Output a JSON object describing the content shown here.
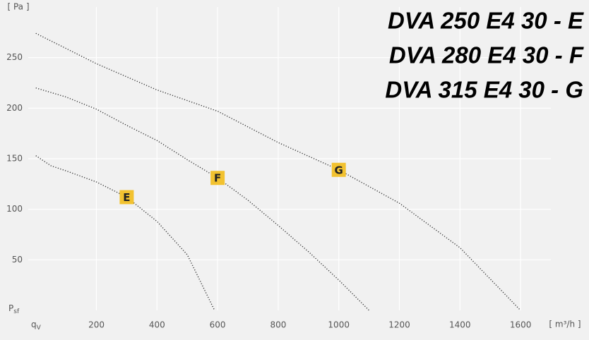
{
  "chart_data": {
    "type": "line",
    "title_lines": [
      "DVA 250 E4 30 - E",
      "DVA 280 E4 30 - F",
      "DVA 315 E4 30 - G"
    ],
    "y_axis_label": "[ Pa ]",
    "x_axis_label": "[ m³/h ]",
    "x_symbol": [
      "q",
      "V"
    ],
    "y_symbol": [
      "P",
      "sf"
    ],
    "xlim": [
      -25,
      1700
    ],
    "ylim": [
      0,
      300
    ],
    "xticks": [
      200,
      400,
      600,
      800,
      1000,
      1200,
      1400,
      1600
    ],
    "yticks": [
      50,
      100,
      150,
      200,
      250
    ],
    "grid": true,
    "series": [
      {
        "name": "E",
        "color": "#333333",
        "x": [
          0,
          50,
          100,
          200,
          300,
          400,
          500,
          590
        ],
        "values": [
          153,
          143,
          138,
          127,
          112,
          88,
          55,
          0
        ]
      },
      {
        "name": "F",
        "color": "#333333",
        "x": [
          0,
          100,
          200,
          300,
          400,
          500,
          600,
          700,
          800,
          900,
          1000,
          1100
        ],
        "values": [
          220,
          211,
          199,
          183,
          168,
          149,
          131,
          109,
          84,
          58,
          30,
          0
        ]
      },
      {
        "name": "G",
        "color": "#333333",
        "x": [
          0,
          200,
          400,
          600,
          800,
          1000,
          1200,
          1400,
          1600
        ],
        "values": [
          274,
          244,
          218,
          197,
          166,
          139,
          106,
          62,
          0
        ]
      }
    ]
  }
}
